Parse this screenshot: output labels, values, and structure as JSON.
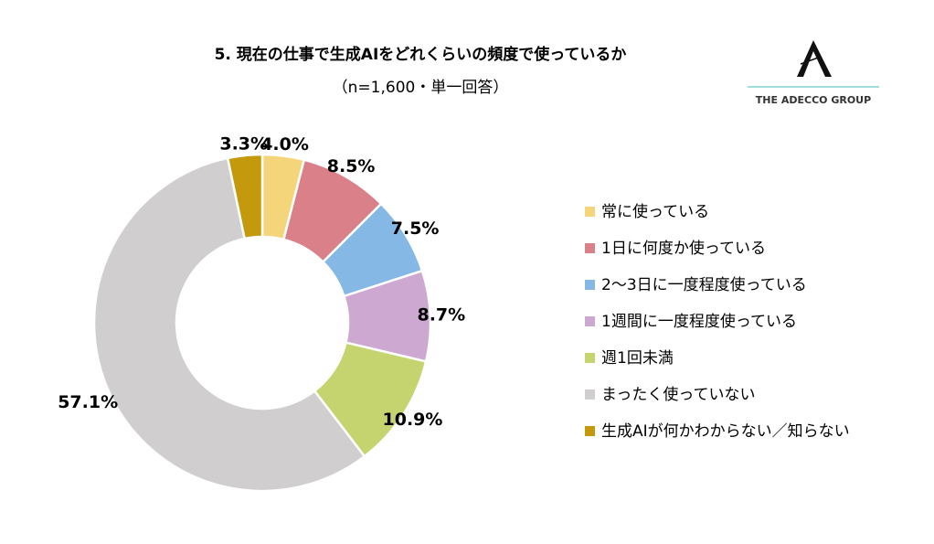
{
  "logo": "THE ADECCO GROUP",
  "chart_data": {
    "type": "donut",
    "title": "5. 現在の仕事で生成AIをどれくらいの頻度で使っているか",
    "subtitle": "（n=1,600・単一回答）",
    "categories": [
      "常に使っている",
      "1日に何度か使っている",
      "2～3日に一度程度使っている",
      "1週間に一度程度使っている",
      "週1回未満",
      "まったく使っていない",
      "生成AIが何かわからない／知らない"
    ],
    "values": [
      4.0,
      8.5,
      7.5,
      8.7,
      10.9,
      57.1,
      3.3
    ],
    "value_labels": [
      "4.0%",
      "8.5%",
      "7.5%",
      "8.7%",
      "10.9%",
      "57.1%",
      "3.3%"
    ],
    "colors": [
      "#f5d57a",
      "#d98088",
      "#86b8e6",
      "#cda8d0",
      "#c5d46e",
      "#d0cece",
      "#c49a0c"
    ],
    "legend": "right"
  }
}
